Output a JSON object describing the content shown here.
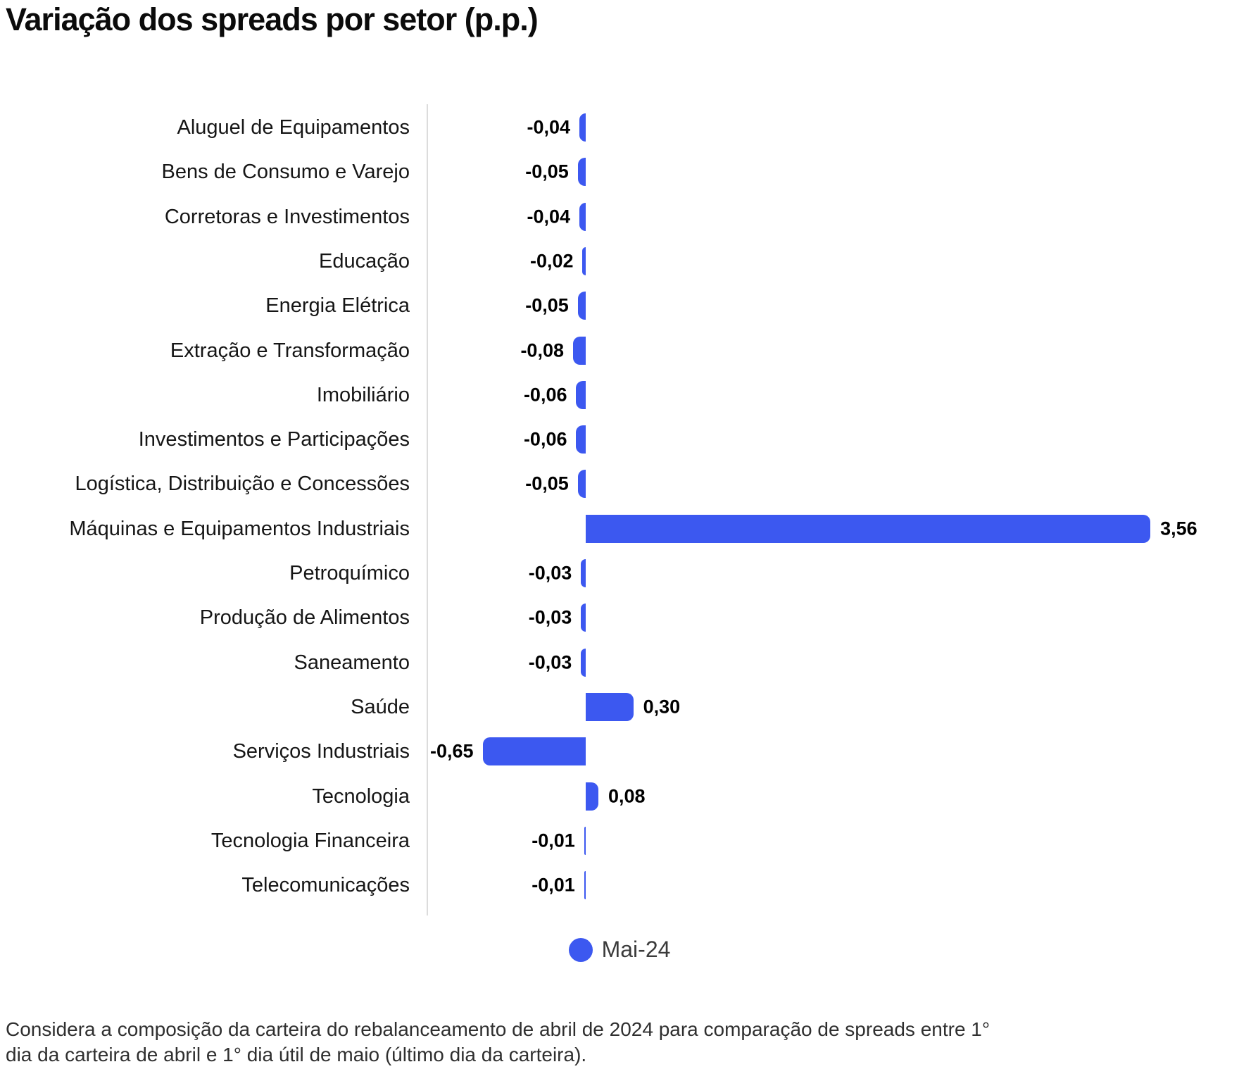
{
  "title": "Variação dos spreads por setor (p.p.)",
  "chart_data": {
    "type": "bar",
    "orientation": "horizontal",
    "title": "Variação dos spreads por setor (p.p.)",
    "series_name": "Mai-24",
    "categories": [
      "Aluguel de Equipamentos",
      "Bens de Consumo e Varejo",
      "Corretoras e Investimentos",
      "Educação",
      "Energia Elétrica",
      "Extração e Transformação",
      "Imobiliário",
      "Investimentos e Participações",
      "Logística, Distribuição e Concessões",
      "Máquinas e Equipamentos Industriais",
      "Petroquímico",
      "Produção de Alimentos",
      "Saneamento",
      "Saúde",
      "Serviços Industriais",
      "Tecnologia",
      "Tecnologia Financeira",
      "Telecomunicações"
    ],
    "values": [
      -0.04,
      -0.05,
      -0.04,
      -0.02,
      -0.05,
      -0.08,
      -0.06,
      -0.06,
      -0.05,
      3.56,
      -0.03,
      -0.03,
      -0.03,
      0.3,
      -0.65,
      0.08,
      -0.01,
      -0.01
    ],
    "value_labels": [
      "-0,04",
      "-0,05",
      "-0,04",
      "-0,02",
      "-0,05",
      "-0,08",
      "-0,06",
      "-0,06",
      "-0,05",
      "3,56",
      "-0,03",
      "-0,03",
      "-0,03",
      "0,30",
      "-0,65",
      "0,08",
      "-0,01",
      "-0,01"
    ],
    "xlim": [
      -0.97,
      4.12
    ],
    "grid": false,
    "legend_position": "bottom",
    "bar_color": "#3C58F0"
  },
  "legend": {
    "items": [
      {
        "label": "Mai-24",
        "color": "#3C58F0"
      }
    ]
  },
  "footnote": {
    "line1": "Considera a composição da carteira do rebalanceamento de abril de 2024 para comparação de spreads entre 1°",
    "line2": "dia da carteira de abril e 1° dia útil de maio (último dia da carteira)."
  },
  "colors": {
    "bar": "#3C58F0",
    "axis_line": "#dcdcdc",
    "title_text": "#0b0b0b",
    "category_text": "#161616",
    "value_text": "#000000",
    "legend_text": "#3b3b3b",
    "footnote_text": "#2f2f2f"
  }
}
